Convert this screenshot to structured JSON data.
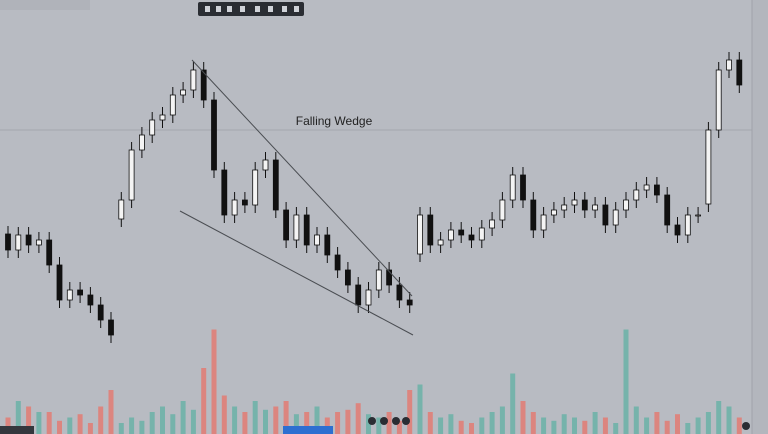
{
  "chart_data": {
    "type": "candlestick",
    "annotation": "Falling Wedge",
    "ylim": [
      0,
      434
    ],
    "volume_ylim": [
      0,
      100
    ],
    "up_color": "#f4f4f4",
    "down_color": "#111111",
    "volume_up_color": "#6fb3a8",
    "volume_down_color": "#e07f78",
    "open": [
      200,
      184,
      199,
      189,
      194,
      169,
      134,
      144,
      139,
      129,
      114,
      215,
      234,
      284,
      299,
      314,
      319,
      339,
      344,
      364,
      334,
      264,
      219,
      234,
      229,
      264,
      274,
      224,
      194,
      219,
      189,
      199,
      179,
      164,
      149,
      129,
      144,
      164,
      149,
      134,
      180,
      219,
      189,
      194,
      204,
      199,
      194,
      206,
      214,
      234,
      259,
      234,
      204,
      219,
      224,
      229,
      234,
      224,
      229,
      209,
      224,
      234,
      244,
      249,
      239,
      209,
      199,
      219,
      230,
      304,
      364,
      374
    ],
    "high": [
      208,
      207,
      207,
      202,
      202,
      177,
      152,
      152,
      147,
      137,
      122,
      242,
      292,
      307,
      322,
      327,
      347,
      352,
      372,
      372,
      342,
      272,
      242,
      242,
      272,
      282,
      282,
      232,
      227,
      227,
      207,
      207,
      187,
      172,
      157,
      152,
      172,
      172,
      157,
      142,
      227,
      227,
      202,
      212,
      212,
      207,
      214,
      222,
      242,
      267,
      267,
      242,
      227,
      232,
      237,
      242,
      242,
      237,
      237,
      232,
      242,
      252,
      257,
      257,
      247,
      217,
      227,
      227,
      312,
      372,
      382,
      382
    ],
    "low": [
      176,
      176,
      181,
      181,
      161,
      126,
      126,
      131,
      121,
      106,
      91,
      207,
      226,
      276,
      291,
      306,
      311,
      331,
      336,
      326,
      256,
      211,
      211,
      221,
      221,
      256,
      216,
      186,
      186,
      181,
      181,
      171,
      156,
      141,
      121,
      121,
      136,
      141,
      126,
      121,
      172,
      181,
      181,
      186,
      191,
      186,
      186,
      198,
      206,
      226,
      226,
      196,
      196,
      211,
      216,
      221,
      216,
      216,
      201,
      201,
      216,
      226,
      236,
      231,
      201,
      191,
      191,
      211,
      222,
      296,
      356,
      341
    ],
    "close": [
      184,
      199,
      189,
      194,
      169,
      134,
      144,
      139,
      129,
      114,
      99,
      234,
      284,
      299,
      314,
      319,
      339,
      344,
      364,
      334,
      264,
      219,
      234,
      229,
      264,
      274,
      224,
      194,
      219,
      189,
      199,
      179,
      164,
      149,
      129,
      144,
      164,
      149,
      134,
      129,
      219,
      189,
      194,
      204,
      199,
      194,
      206,
      214,
      234,
      259,
      234,
      204,
      219,
      224,
      229,
      234,
      224,
      229,
      209,
      224,
      234,
      244,
      249,
      239,
      209,
      199,
      219,
      219,
      304,
      364,
      374,
      349
    ],
    "volume": [
      15,
      30,
      25,
      20,
      20,
      12,
      15,
      18,
      10,
      25,
      40,
      10,
      15,
      12,
      20,
      25,
      18,
      30,
      22,
      60,
      95,
      35,
      25,
      20,
      30,
      22,
      25,
      30,
      18,
      20,
      25,
      15,
      20,
      22,
      28,
      18,
      15,
      20,
      12,
      40,
      45,
      20,
      15,
      18,
      12,
      10,
      15,
      20,
      25,
      55,
      30,
      20,
      15,
      12,
      18,
      15,
      12,
      20,
      15,
      10,
      95,
      25,
      15,
      20,
      12,
      18,
      10,
      15,
      20,
      30,
      25,
      15
    ]
  }
}
